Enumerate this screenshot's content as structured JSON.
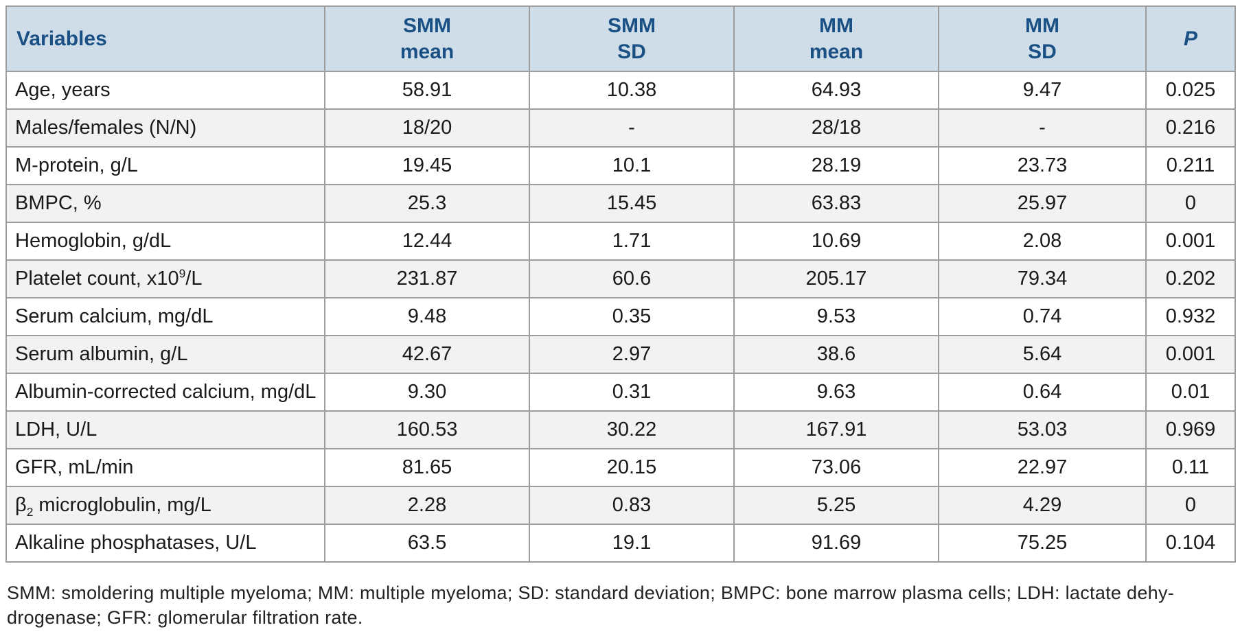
{
  "colors": {
    "header_bg": "#cfdde9",
    "header_text": "#1a5084",
    "row_alt_bg": "#f2f2f2",
    "border_color": "#9c9c9c",
    "body_text": "#1a1a1a",
    "footnote_text": "#222222"
  },
  "table": {
    "columns": [
      {
        "id": "variable",
        "label_lines": [
          "Variables"
        ],
        "align": "left",
        "italic": false
      },
      {
        "id": "smm-mean",
        "label_lines": [
          "SMM",
          "mean"
        ],
        "align": "center",
        "italic": false
      },
      {
        "id": "smm-sd",
        "label_lines": [
          "SMM",
          "SD"
        ],
        "align": "center",
        "italic": false
      },
      {
        "id": "mm-mean",
        "label_lines": [
          "MM",
          "mean"
        ],
        "align": "center",
        "italic": false
      },
      {
        "id": "mm-sd",
        "label_lines": [
          "MM",
          "SD"
        ],
        "align": "center",
        "italic": false
      },
      {
        "id": "p",
        "label_lines": [
          "P"
        ],
        "align": "center",
        "italic": true
      }
    ],
    "rows": [
      {
        "variable": [
          {
            "t": "Age, years"
          }
        ],
        "values": [
          "58.91",
          "10.38",
          "64.93",
          "9.47",
          "0.025"
        ]
      },
      {
        "variable": [
          {
            "t": "Males/females (N/N)"
          }
        ],
        "values": [
          "18/20",
          "-",
          "28/18",
          "-",
          "0.216"
        ]
      },
      {
        "variable": [
          {
            "t": "M-protein, g/L"
          }
        ],
        "values": [
          "19.45",
          "10.1",
          "28.19",
          "23.73",
          "0.211"
        ]
      },
      {
        "variable": [
          {
            "t": "BMPC, %"
          }
        ],
        "values": [
          "25.3",
          "15.45",
          "63.83",
          "25.97",
          "0"
        ]
      },
      {
        "variable": [
          {
            "t": "Hemoglobin, g/dL"
          }
        ],
        "values": [
          "12.44",
          "1.71",
          "10.69",
          "2.08",
          "0.001"
        ]
      },
      {
        "variable": [
          {
            "t": "Platelet count, x10"
          },
          {
            "t": "9",
            "v": "sup"
          },
          {
            "t": "/L"
          }
        ],
        "values": [
          "231.87",
          "60.6",
          "205.17",
          "79.34",
          "0.202"
        ]
      },
      {
        "variable": [
          {
            "t": "Serum calcium, mg/dL"
          }
        ],
        "values": [
          "9.48",
          "0.35",
          "9.53",
          "0.74",
          "0.932"
        ]
      },
      {
        "variable": [
          {
            "t": "Serum albumin, g/L"
          }
        ],
        "values": [
          "42.67",
          "2.97",
          "38.6",
          "5.64",
          "0.001"
        ]
      },
      {
        "variable": [
          {
            "t": "Albumin-corrected calcium, mg/dL"
          }
        ],
        "values": [
          "9.30",
          "0.31",
          "9.63",
          "0.64",
          "0.01"
        ]
      },
      {
        "variable": [
          {
            "t": "LDH, U/L"
          }
        ],
        "values": [
          "160.53",
          "30.22",
          "167.91",
          "53.03",
          "0.969"
        ]
      },
      {
        "variable": [
          {
            "t": "GFR, mL/min"
          }
        ],
        "values": [
          "81.65",
          "20.15",
          "73.06",
          "22.97",
          "0.11"
        ]
      },
      {
        "variable": [
          {
            "t": "β"
          },
          {
            "t": "2",
            "v": "sub"
          },
          {
            "t": " microglobulin, mg/L"
          }
        ],
        "values": [
          "2.28",
          "0.83",
          "5.25",
          "4.29",
          "0"
        ]
      },
      {
        "variable": [
          {
            "t": "Alkaline phosphatases, U/L"
          }
        ],
        "values": [
          "63.5",
          "19.1",
          "91.69",
          "75.25",
          "0.104"
        ]
      }
    ]
  },
  "footnote": {
    "lines": [
      "SMM: smoldering multiple myeloma; MM: multiple myeloma; SD: standard deviation; BMPC: bone marrow plasma cells; LDH: lactate dehy-",
      "drogenase; GFR: glomerular filtration rate."
    ]
  }
}
